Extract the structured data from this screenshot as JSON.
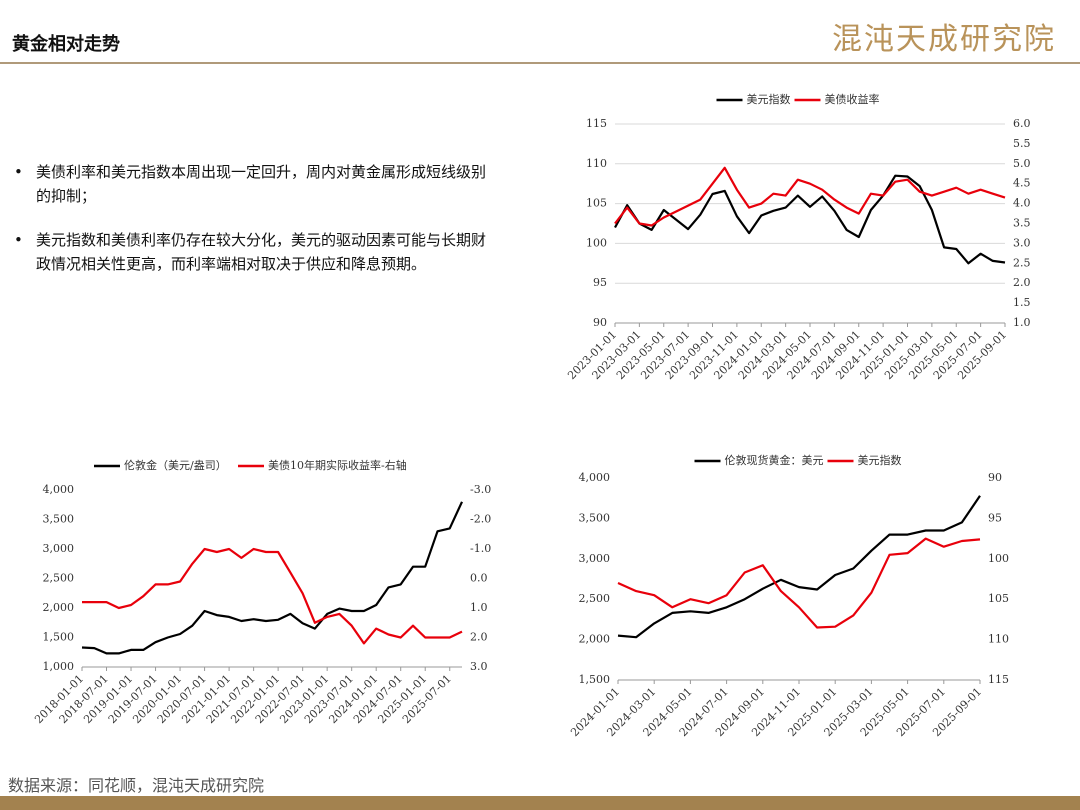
{
  "header": {
    "title": "黄金相对走势",
    "logo": "混沌天成研究院"
  },
  "bullets": [
    "美债利率和美元指数本周出现一定回升，周内对黄金属形成短线级别的抑制；",
    "美元指数和美债利率仍存在较大分化，美元的驱动因素可能与长期财政情况相关性更高，而利率端相对取决于供应和降息预期。"
  ],
  "source": "数据来源：同花顺，混沌天成研究院",
  "chart_data": [
    {
      "type": "line",
      "grid": true,
      "categories": [
        "2023-01-01",
        null,
        "2023-03-01",
        null,
        "2023-05-01",
        null,
        "2023-07-01",
        null,
        "2023-09-01",
        null,
        "2023-11-01",
        null,
        "2024-01-01",
        null,
        "2024-03-01",
        null,
        "2024-05-01",
        null,
        "2024-07-01",
        null,
        "2024-09-01",
        null,
        "2024-11-01",
        null,
        "2025-01-01",
        null,
        "2025-03-01",
        null,
        "2025-05-01",
        null,
        "2025-07-01",
        null,
        "2025-09-01"
      ],
      "ylim": [
        90,
        115
      ],
      "yticks": [
        90,
        95,
        100,
        105,
        110,
        115
      ],
      "y2lim": [
        1.0,
        6.0
      ],
      "y2ticks": [
        {
          "value": 1,
          "label": "1.0"
        },
        {
          "value": 1.5,
          "label": "1.5"
        },
        {
          "value": 2,
          "label": "2.0"
        },
        {
          "value": 2.5,
          "label": "2.5"
        },
        {
          "value": 3,
          "label": "3.0"
        },
        {
          "value": 3.5,
          "label": "3.5"
        },
        {
          "value": 4,
          "label": "4.0"
        },
        {
          "value": 4.5,
          "label": "4.5"
        },
        {
          "value": 5,
          "label": "5.0"
        },
        {
          "value": 5.5,
          "label": "5.5"
        },
        {
          "value": 6,
          "label": "6.0"
        }
      ],
      "series": [
        {
          "name": "美元指数",
          "color": "#000000",
          "values": [
            102,
            104.8,
            102.5,
            101.7,
            104.2,
            103,
            101.8,
            103.6,
            106.2,
            106.6,
            103.4,
            101.3,
            103.5,
            104.1,
            104.5,
            106,
            104.6,
            105.9,
            104.1,
            101.7,
            100.8,
            104.2,
            106,
            108.5,
            108.4,
            107.2,
            104.2,
            99.5,
            99.3,
            97.5,
            98.7,
            97.8,
            97.6
          ]
        },
        {
          "name": "美债收益率",
          "color": "#e8000b",
          "axis": "y2",
          "values": [
            3.5,
            3.9,
            3.5,
            3.45,
            3.65,
            3.8,
            3.95,
            4.1,
            4.5,
            4.9,
            4.35,
            3.9,
            4.0,
            4.25,
            4.2,
            4.6,
            4.5,
            4.35,
            4.1,
            3.9,
            3.75,
            4.25,
            4.2,
            4.55,
            4.6,
            4.3,
            4.2,
            4.3,
            4.4,
            4.25,
            4.35,
            4.25,
            4.15
          ]
        }
      ]
    },
    {
      "type": "line",
      "grid": false,
      "categories": [
        "2018-01-01",
        null,
        "2018-07-01",
        null,
        "2019-01-01",
        null,
        "2019-07-01",
        null,
        "2020-01-01",
        null,
        "2020-07-01",
        null,
        "2021-01-01",
        null,
        "2021-07-01",
        null,
        "2022-01-01",
        null,
        "2022-07-01",
        null,
        "2023-01-01",
        null,
        "2023-07-01",
        null,
        "2024-01-01",
        null,
        "2024-07-01",
        null,
        "2025-01-01",
        null,
        "2025-07-01",
        null
      ],
      "ylim": [
        1000,
        4000
      ],
      "yticks": [
        {
          "value": 1000,
          "label": "1,000"
        },
        {
          "value": 1500,
          "label": "1,500"
        },
        {
          "value": 2000,
          "label": "2,000"
        },
        {
          "value": 2500,
          "label": "2,500"
        },
        {
          "value": 3000,
          "label": "3,000"
        },
        {
          "value": 3500,
          "label": "3,500"
        },
        {
          "value": 4000,
          "label": "4,000"
        }
      ],
      "y2lim": [
        3.0,
        -3.0
      ],
      "y2ticks": [
        {
          "value": -3,
          "label": "-3.0"
        },
        {
          "value": -2,
          "label": "-2.0"
        },
        {
          "value": -1,
          "label": "-1.0"
        },
        {
          "value": 0,
          "label": "0.0"
        },
        {
          "value": 1,
          "label": "1.0"
        },
        {
          "value": 2,
          "label": "2.0"
        },
        {
          "value": 3,
          "label": "3.0"
        }
      ],
      "series": [
        {
          "name": "伦敦金（美元/盎司）",
          "color": "#000000",
          "values": [
            1330,
            1320,
            1230,
            1230,
            1290,
            1290,
            1420,
            1500,
            1560,
            1700,
            1950,
            1880,
            1850,
            1780,
            1810,
            1780,
            1800,
            1900,
            1740,
            1650,
            1900,
            1990,
            1950,
            1950,
            2050,
            2350,
            2400,
            2700,
            2700,
            3300,
            3350,
            3800
          ]
        },
        {
          "name": "美债10年期实际收益率-右轴",
          "color": "#e8000b",
          "axis": "y2",
          "values": [
            0.8,
            0.8,
            0.8,
            1.0,
            0.9,
            0.6,
            0.2,
            0.2,
            0.1,
            -0.5,
            -1.0,
            -0.9,
            -1.0,
            -0.7,
            -1.0,
            -0.9,
            -0.9,
            -0.2,
            0.5,
            1.5,
            1.3,
            1.2,
            1.6,
            2.2,
            1.7,
            1.9,
            2.0,
            1.6,
            2.0,
            2.0,
            2.0,
            1.8
          ]
        }
      ]
    },
    {
      "type": "line",
      "grid": false,
      "categories": [
        "2024-01-01",
        null,
        "2024-03-01",
        null,
        "2024-05-01",
        null,
        "2024-07-01",
        null,
        "2024-09-01",
        null,
        "2024-11-01",
        null,
        "2025-01-01",
        null,
        "2025-03-01",
        null,
        "2025-05-01",
        null,
        "2025-07-01",
        null,
        "2025-09-01"
      ],
      "ylim": [
        1500,
        4000
      ],
      "yticks": [
        {
          "value": 1500,
          "label": "1,500"
        },
        {
          "value": 2000,
          "label": "2,000"
        },
        {
          "value": 2500,
          "label": "2,500"
        },
        {
          "value": 3000,
          "label": "3,000"
        },
        {
          "value": 3500,
          "label": "3,500"
        },
        {
          "value": 4000,
          "label": "4,000"
        }
      ],
      "y2lim": [
        115,
        90
      ],
      "y2ticks": [
        90,
        95,
        100,
        105,
        110,
        115
      ],
      "series": [
        {
          "name": "伦敦现货黄金：美元",
          "color": "#000000",
          "values": [
            2050,
            2030,
            2200,
            2330,
            2350,
            2330,
            2400,
            2500,
            2630,
            2740,
            2650,
            2620,
            2800,
            2880,
            3100,
            3300,
            3300,
            3350,
            3350,
            3450,
            3780
          ]
        },
        {
          "name": "美元指数",
          "color": "#e8000b",
          "axis": "y2",
          "values": [
            103,
            104,
            104.5,
            106,
            105,
            105.5,
            104.5,
            101.7,
            100.8,
            104,
            106,
            108.5,
            108.4,
            107,
            104.2,
            99.5,
            99.3,
            97.5,
            98.5,
            97.8,
            97.6
          ]
        }
      ]
    }
  ]
}
